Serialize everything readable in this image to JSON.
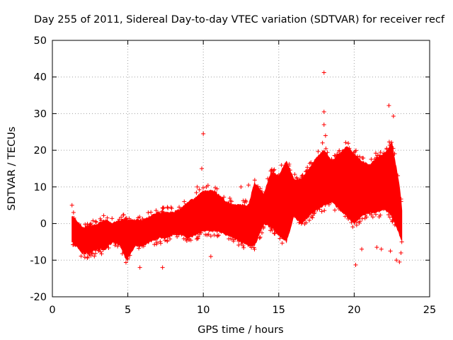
{
  "chart_data": {
    "type": "scatter",
    "title": "Day 255 of 2011, Sidereal Day-to-day VTEC variation (SDTVAR) for receiver recf",
    "xlabel": "GPS time / hours",
    "ylabel": "SDTVAR / TECUs",
    "xlim": [
      0,
      25
    ],
    "ylim": [
      -20,
      50
    ],
    "xticks": [
      0,
      5,
      10,
      15,
      20,
      25
    ],
    "yticks": [
      -20,
      -10,
      0,
      10,
      20,
      30,
      40,
      50
    ],
    "grid": true,
    "marker": "+",
    "color": "#ff0000",
    "series": [
      {
        "name": "SDTVAR",
        "band": [
          {
            "x": 1.3,
            "lo": -5,
            "hi": 2
          },
          {
            "x": 2.0,
            "lo": -8,
            "hi": -1
          },
          {
            "x": 2.5,
            "lo": -8,
            "hi": -1
          },
          {
            "x": 3.0,
            "lo": -7,
            "hi": 0
          },
          {
            "x": 3.5,
            "lo": -7,
            "hi": 1
          },
          {
            "x": 4.0,
            "lo": -5,
            "hi": 0
          },
          {
            "x": 4.5,
            "lo": -6,
            "hi": 1
          },
          {
            "x": 4.9,
            "lo": -10,
            "hi": 1
          },
          {
            "x": 5.5,
            "lo": -6,
            "hi": 1
          },
          {
            "x": 6.0,
            "lo": -6,
            "hi": 1
          },
          {
            "x": 6.5,
            "lo": -5,
            "hi": 2
          },
          {
            "x": 7.0,
            "lo": -4,
            "hi": 3
          },
          {
            "x": 7.5,
            "lo": -4,
            "hi": 3
          },
          {
            "x": 8.0,
            "lo": -3,
            "hi": 3
          },
          {
            "x": 8.5,
            "lo": -3,
            "hi": 4
          },
          {
            "x": 9.0,
            "lo": -4,
            "hi": 6
          },
          {
            "x": 9.5,
            "lo": -3,
            "hi": 7
          },
          {
            "x": 10.0,
            "lo": -2,
            "hi": 9
          },
          {
            "x": 10.5,
            "lo": -2,
            "hi": 9
          },
          {
            "x": 11.0,
            "lo": -2,
            "hi": 8
          },
          {
            "x": 11.5,
            "lo": -3,
            "hi": 6
          },
          {
            "x": 12.0,
            "lo": -4,
            "hi": 5
          },
          {
            "x": 12.5,
            "lo": -5,
            "hi": 5
          },
          {
            "x": 13.0,
            "lo": -6,
            "hi": 5
          },
          {
            "x": 13.4,
            "lo": -6,
            "hi": 11
          },
          {
            "x": 14.0,
            "lo": 0,
            "hi": 8
          },
          {
            "x": 14.5,
            "lo": -1,
            "hi": 14
          },
          {
            "x": 15.0,
            "lo": -3,
            "hi": 13
          },
          {
            "x": 15.5,
            "lo": -5,
            "hi": 17
          },
          {
            "x": 16.0,
            "lo": 2,
            "hi": 12
          },
          {
            "x": 16.5,
            "lo": 0,
            "hi": 12
          },
          {
            "x": 17.0,
            "lo": 2,
            "hi": 15
          },
          {
            "x": 17.5,
            "lo": 4,
            "hi": 18
          },
          {
            "x": 18.0,
            "lo": 5,
            "hi": 20
          },
          {
            "x": 18.5,
            "lo": 6,
            "hi": 17
          },
          {
            "x": 19.0,
            "lo": 4,
            "hi": 19
          },
          {
            "x": 19.5,
            "lo": 2,
            "hi": 21
          },
          {
            "x": 20.0,
            "lo": 0,
            "hi": 19
          },
          {
            "x": 20.5,
            "lo": 2,
            "hi": 17
          },
          {
            "x": 21.0,
            "lo": 3,
            "hi": 16
          },
          {
            "x": 21.5,
            "lo": 3,
            "hi": 18
          },
          {
            "x": 22.0,
            "lo": 4,
            "hi": 19
          },
          {
            "x": 22.5,
            "lo": 2,
            "hi": 22
          },
          {
            "x": 23.0,
            "lo": -3,
            "hi": 10
          },
          {
            "x": 23.2,
            "lo": -5,
            "hi": 2
          }
        ],
        "outliers": [
          {
            "x": 1.3,
            "y": 5
          },
          {
            "x": 1.4,
            "y": 3
          },
          {
            "x": 5.8,
            "y": -12
          },
          {
            "x": 7.3,
            "y": -12
          },
          {
            "x": 10.0,
            "y": 24.5
          },
          {
            "x": 9.9,
            "y": 15
          },
          {
            "x": 9.6,
            "y": 10
          },
          {
            "x": 10.2,
            "y": 10
          },
          {
            "x": 10.5,
            "y": -9
          },
          {
            "x": 12.5,
            "y": 10
          },
          {
            "x": 13.0,
            "y": 10.5
          },
          {
            "x": 18.0,
            "y": 41.2
          },
          {
            "x": 18.0,
            "y": 30.5
          },
          {
            "x": 18.0,
            "y": 27
          },
          {
            "x": 18.1,
            "y": 24
          },
          {
            "x": 17.9,
            "y": 22
          },
          {
            "x": 20.1,
            "y": -11.3
          },
          {
            "x": 20.5,
            "y": -7
          },
          {
            "x": 21.5,
            "y": -6.5
          },
          {
            "x": 21.8,
            "y": -7
          },
          {
            "x": 22.3,
            "y": 32.2
          },
          {
            "x": 22.6,
            "y": 29.3
          },
          {
            "x": 22.8,
            "y": -10
          },
          {
            "x": 23.0,
            "y": -10.5
          },
          {
            "x": 23.1,
            "y": -8
          },
          {
            "x": 22.4,
            "y": -7.5
          }
        ]
      }
    ]
  }
}
